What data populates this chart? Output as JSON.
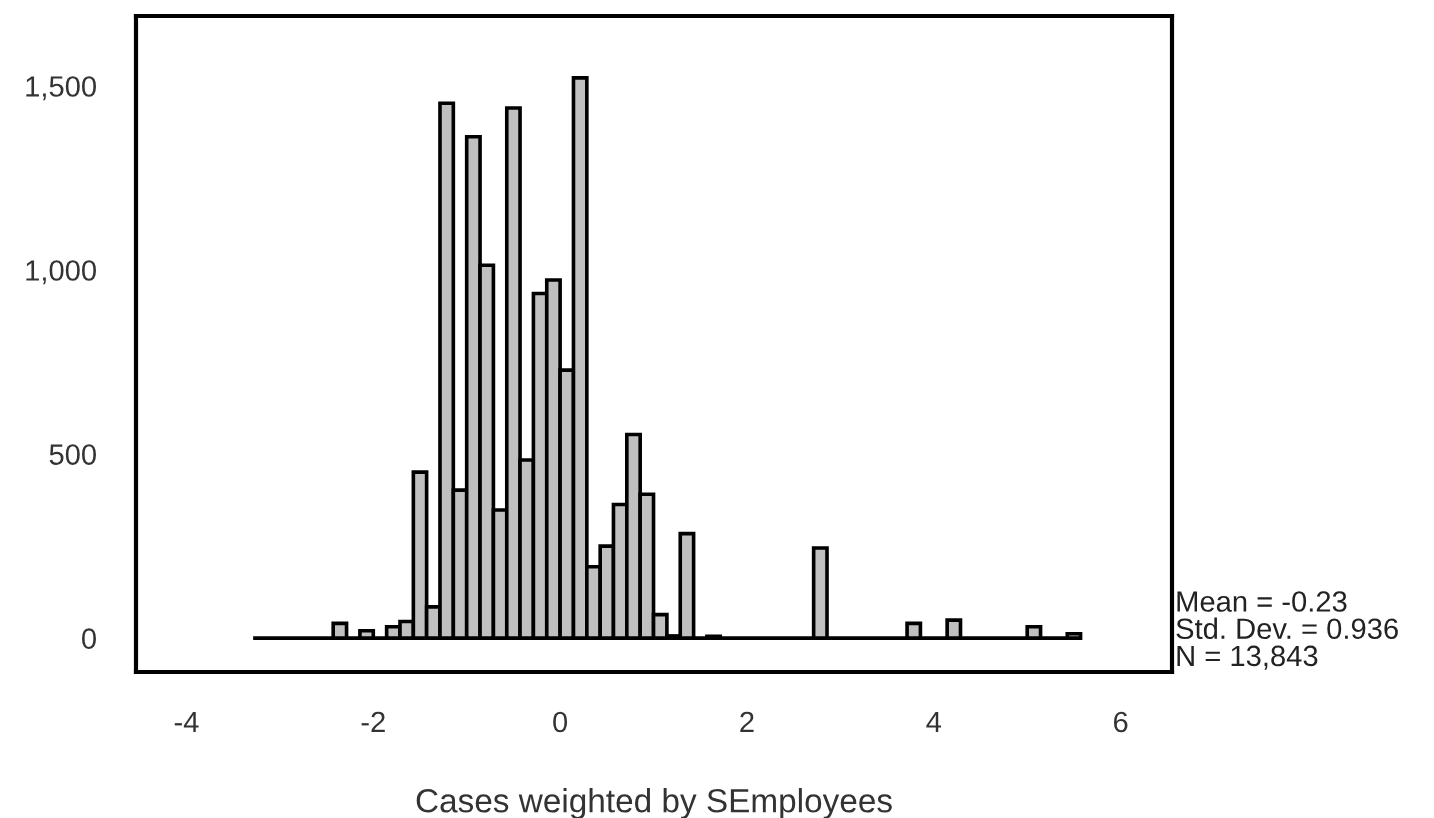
{
  "chart_data": {
    "type": "histogram",
    "xlabel": "Cases weighted by SEmployees",
    "bins": [
      -3.286,
      -3.143,
      -3.0,
      -2.857,
      -2.714,
      -2.571,
      -2.429,
      -2.286,
      -2.143,
      -2.0,
      -1.857,
      -1.714,
      -1.571,
      -1.429,
      -1.286,
      -1.143,
      -1.0,
      -0.857,
      -0.714,
      -0.571,
      -0.429,
      -0.286,
      -0.143,
      0.0,
      0.143,
      0.286,
      0.429,
      0.571,
      0.714,
      0.857,
      1.0,
      1.143,
      1.286,
      1.429,
      1.571,
      1.714,
      1.857,
      2.0,
      2.143,
      2.286,
      2.429,
      2.571,
      2.714,
      2.857,
      3.0,
      3.143,
      3.286,
      3.429,
      3.571,
      3.714,
      3.857,
      4.0,
      4.143,
      4.286,
      4.429,
      4.571,
      4.714,
      4.857,
      5.0,
      5.143,
      5.286,
      5.429,
      5.571
    ],
    "values": [
      0,
      0,
      0,
      0,
      0,
      0,
      40,
      0,
      20,
      0,
      31,
      45,
      451,
      85,
      1453,
      402,
      1362,
      1013,
      348,
      1440,
      484,
      936,
      973,
      728,
      1522,
      194,
      250,
      363,
      553,
      391,
      64,
      6,
      284,
      0,
      5,
      0,
      0,
      0,
      0,
      0,
      0,
      0,
      245,
      0,
      0,
      0,
      0,
      0,
      0,
      40,
      0,
      0,
      49,
      0,
      0,
      0,
      0,
      0,
      31,
      0,
      0,
      12
    ],
    "color": "#c0c0c0",
    "xlim": [
      -4.54,
      6.55
    ],
    "ylim": [
      -92,
      1690
    ],
    "xticks": [
      -4,
      -2,
      0,
      2,
      4,
      6
    ],
    "yticks": [
      0,
      500,
      {
        "value": 1000,
        "label": "1,000"
      },
      {
        "value": 1500,
        "label": "1,500"
      }
    ],
    "grid": false,
    "ref_lines": [
      {
        "axis": "y",
        "value": 0,
        "color": "#000000"
      }
    ],
    "annotations": [
      "Mean = -0.23",
      "Std. Dev. = 0.936",
      "N = 13,843"
    ]
  }
}
